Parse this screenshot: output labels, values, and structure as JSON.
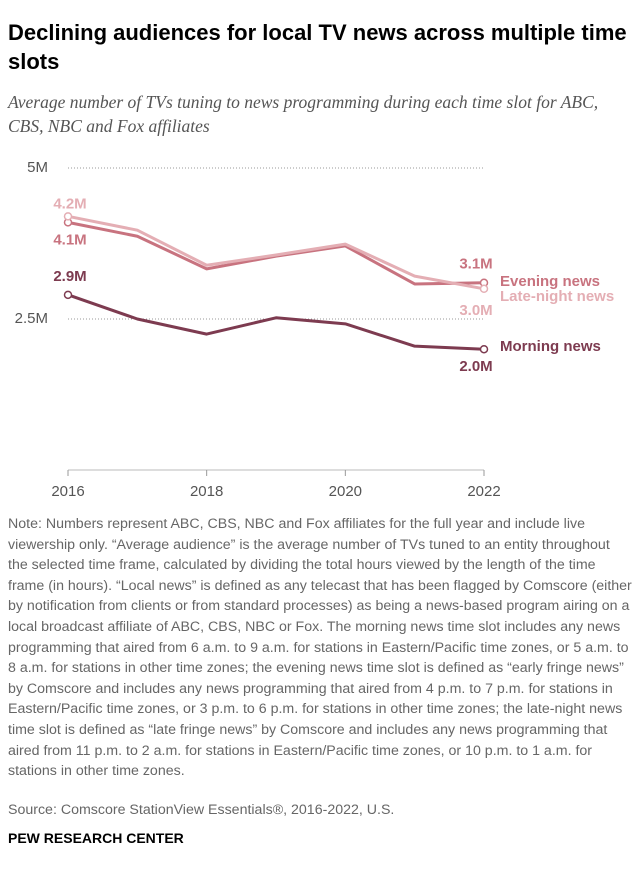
{
  "chart_data": {
    "type": "line",
    "title": "Declining audiences for local TV news across multiple time slots",
    "subtitle": "Average number of TVs tuning to news programming during each time slot for ABC, CBS, NBC and Fox affiliates",
    "x": [
      2016,
      2017,
      2018,
      2019,
      2020,
      2021,
      2022
    ],
    "xlim": [
      2016,
      2022
    ],
    "xticks": [
      2016,
      2018,
      2020,
      2022
    ],
    "ylim": [
      0,
      5
    ],
    "yticks": [
      {
        "value": 2.5,
        "label": "2.5M"
      },
      {
        "value": 5,
        "label": "5M"
      }
    ],
    "grid": true,
    "series": [
      {
        "name": "Evening news",
        "color": "#c8737f",
        "values": [
          4.1,
          3.87,
          3.33,
          3.54,
          3.71,
          3.08,
          3.1
        ],
        "value_labels": [
          "4.1M",
          null,
          null,
          null,
          null,
          null,
          "3.1M"
        ]
      },
      {
        "name": "Late-night news",
        "color": "#e4aeb4",
        "values": [
          4.2,
          3.97,
          3.39,
          3.56,
          3.74,
          3.21,
          3.0
        ],
        "value_labels": [
          "4.2M",
          null,
          null,
          null,
          null,
          null,
          "3.0M"
        ]
      },
      {
        "name": "Morning news",
        "color": "#7d3b50",
        "values": [
          2.9,
          2.5,
          2.25,
          2.52,
          2.42,
          2.05,
          2.0
        ],
        "value_labels": [
          "2.9M",
          null,
          null,
          null,
          null,
          null,
          "2.0M"
        ]
      }
    ],
    "note": "Note: Numbers represent ABC, CBS, NBC and Fox affiliates for the full year and include live viewership only. “Average audience” is the average number of TVs tuned to an entity throughout the selected time frame, calculated by dividing the total hours viewed by the length of the time frame (in hours). “Local news” is defined as any telecast that has been flagged by Comscore (either by notification from clients or from standard processes) as being a news-based program airing on a local broadcast affiliate of ABC, CBS, NBC or Fox. The morning news time slot includes any news programming that aired from 6 a.m. to 9 a.m. for stations in Eastern/Pacific time zones, or 5 a.m. to 8 a.m. for stations in other time zones; the evening news time slot is defined as “early fringe news” by Comscore and includes any news programming that aired from 4 p.m. to 7 p.m. for stations in Eastern/Pacific time zones, or 3 p.m. to 6 p.m. for stations in other time zones; the late-night news time slot is defined as “late fringe news” by Comscore and includes any news programming that aired from 11 p.m. to 2 a.m. for stations in Eastern/Pacific time zones, or 10 p.m. to 1 a.m. for stations in other time zones.",
    "source": "Source: Comscore StationView Essentials®, 2016-2022, U.S.",
    "footer": "PEW RESEARCH CENTER"
  }
}
